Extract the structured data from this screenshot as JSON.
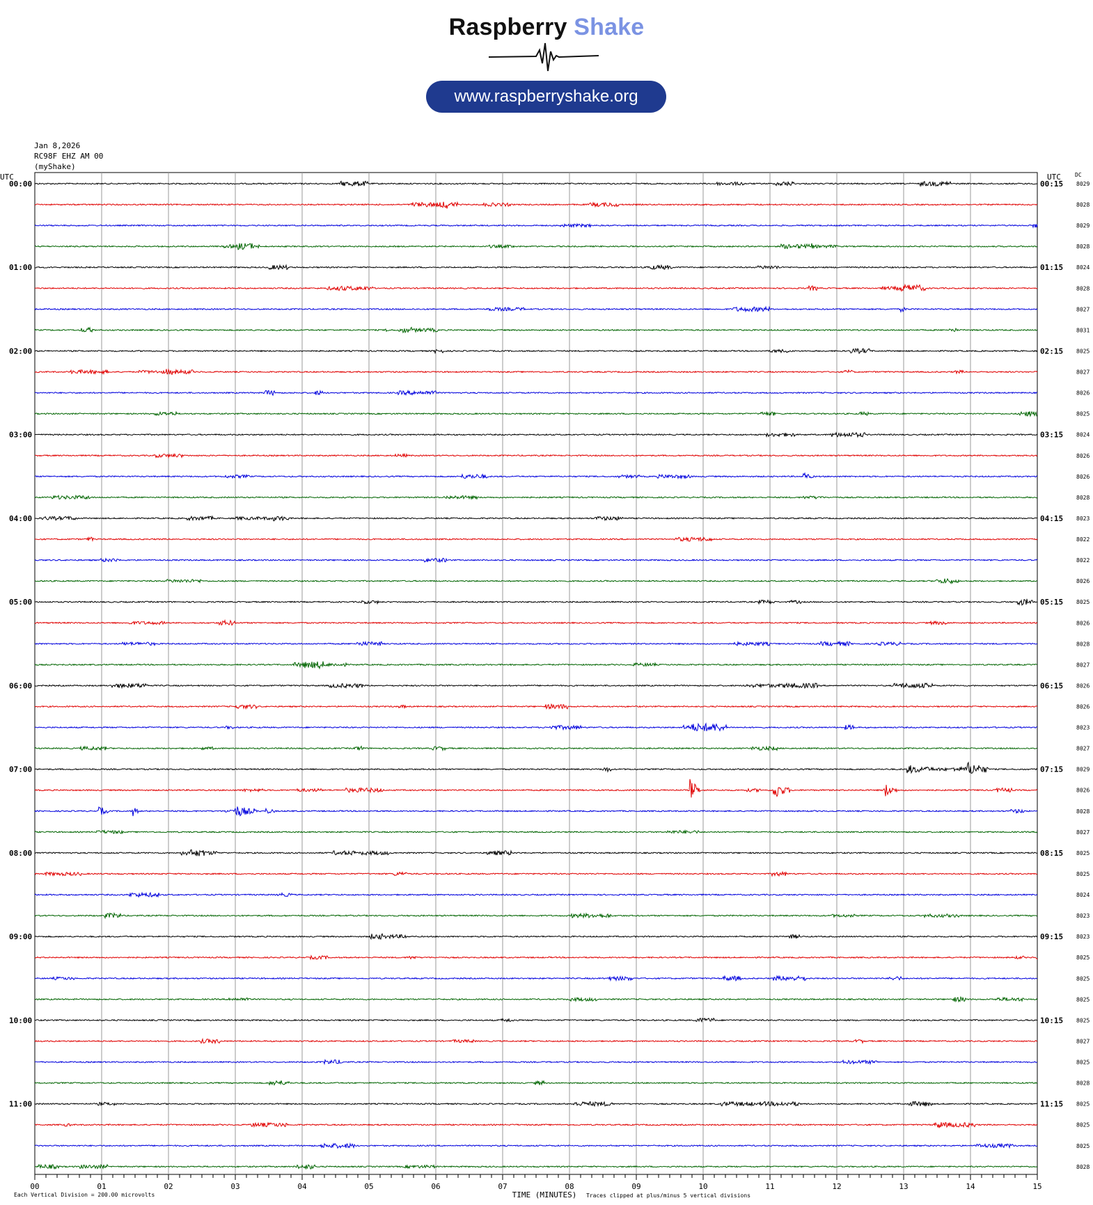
{
  "logo": {
    "brand_word_1": "Raspberry",
    "brand_word_2": "Shake",
    "url": "www.raspberryshake.org"
  },
  "header": {
    "date": "Jan 8,2026",
    "station": "RC98F EHZ AM 00",
    "source": "(myShake)"
  },
  "colors": [
    "#000000",
    "#e00000",
    "#0000dd",
    "#006400"
  ],
  "chart_data": {
    "type": "helicorder",
    "left_axis_title": "UTC",
    "right_axis_title": "UTC",
    "dc_title": "DC",
    "left_labels": [
      "00:00",
      "01:00",
      "02:00",
      "03:00",
      "04:00",
      "05:00",
      "06:00",
      "07:00",
      "08:00",
      "09:00",
      "10:00",
      "11:00"
    ],
    "right_labels": [
      "00:15",
      "01:15",
      "02:15",
      "03:15",
      "04:15",
      "05:15",
      "06:15",
      "07:15",
      "08:15",
      "09:15",
      "10:15",
      "11:15"
    ],
    "dc_values": [
      8029,
      8028,
      8029,
      8028,
      8024,
      8028,
      8027,
      8031,
      8025,
      8027,
      8026,
      8025,
      8024,
      8026,
      8026,
      8028,
      8023,
      8022,
      8022,
      8026,
      8025,
      8026,
      8028,
      8027,
      8026,
      8026,
      8023,
      8027,
      8029,
      8026,
      8028,
      8027,
      8025,
      8025,
      8024,
      8023,
      8023,
      8025,
      8025,
      8025,
      8025,
      8027,
      8025,
      8028,
      8025,
      8025,
      8025,
      8028
    ],
    "x_ticks": [
      "00",
      "01",
      "02",
      "03",
      "04",
      "05",
      "06",
      "07",
      "08",
      "09",
      "10",
      "11",
      "12",
      "13",
      "14",
      "15"
    ],
    "x_range": [
      0,
      15
    ],
    "xlabel": "TIME (MINUTES)",
    "note_left": "Each Vertical Division = 200.00 microvolts",
    "note_right": "Traces clipped at plus/minus 5 vertical divisions",
    "events": [
      {
        "row": 28,
        "t": 13.05,
        "dur": 0.6,
        "amp": 5
      },
      {
        "row": 28,
        "t": 13.95,
        "dur": 0.3,
        "amp": 7
      },
      {
        "row": 29,
        "t": 9.8,
        "dur": 0.15,
        "amp": 16
      },
      {
        "row": 29,
        "t": 11.05,
        "dur": 0.25,
        "amp": 12
      },
      {
        "row": 29,
        "t": 12.7,
        "dur": 0.2,
        "amp": 10
      },
      {
        "row": 30,
        "t": 0.95,
        "dur": 0.15,
        "amp": 7
      },
      {
        "row": 30,
        "t": 1.45,
        "dur": 0.1,
        "amp": 8
      },
      {
        "row": 30,
        "t": 3.0,
        "dur": 0.3,
        "amp": 6
      },
      {
        "row": 30,
        "t": 3.45,
        "dur": 0.15,
        "amp": 4
      },
      {
        "row": 6,
        "t": 12.95,
        "dur": 0.1,
        "amp": 4
      },
      {
        "row": 14,
        "t": 11.5,
        "dur": 0.15,
        "amp": 5
      }
    ]
  }
}
